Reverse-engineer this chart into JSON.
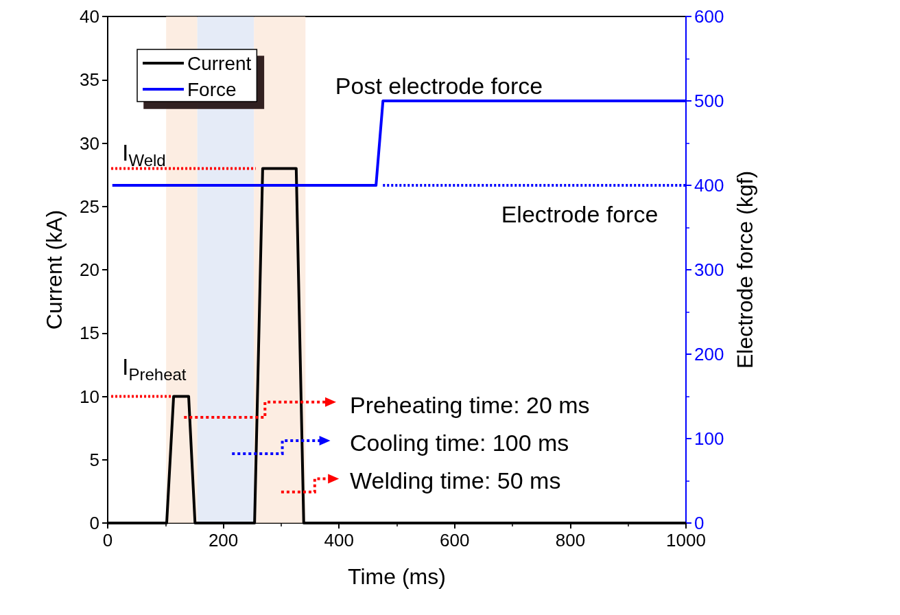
{
  "chart_data": {
    "type": "line",
    "xlabel": "Time (ms)",
    "ylabel": "Current (kA)",
    "y2label": "Electrode force (kgf)",
    "xlim": [
      0,
      1000
    ],
    "xticks": [
      0,
      200,
      400,
      600,
      800,
      1000
    ],
    "ylim": [
      0,
      40
    ],
    "yticks": [
      0,
      5,
      10,
      15,
      20,
      25,
      30,
      35,
      40
    ],
    "y2lim": [
      0,
      600
    ],
    "y2ticks": [
      0,
      100,
      200,
      300,
      400,
      500,
      600
    ],
    "grid": false,
    "legend": "top left",
    "marker": "none",
    "series": [
      {
        "name": "Current",
        "color": "#000000",
        "x": [
          0,
          102,
          114,
          140,
          151,
          254,
          268,
          326,
          339,
          1000
        ],
        "values": [
          0,
          0,
          10,
          10,
          0,
          0,
          28,
          28,
          0,
          0
        ]
      },
      {
        "name": "Force",
        "color": "#0000ff",
        "axis": "y2",
        "x": [
          8,
          464,
          476,
          1000
        ],
        "values": [
          400,
          400,
          500,
          500
        ]
      },
      {
        "color": "#0000ff",
        "axis": "y2",
        "line_style": "dotted",
        "x": [
          476,
          1000
        ],
        "values": [
          400,
          400
        ]
      },
      {
        "color": "#ff0000",
        "line_style": "dotted",
        "x": [
          6,
          256
        ],
        "values": [
          28,
          28
        ]
      },
      {
        "color": "#ff0000",
        "line_style": "dotted",
        "x": [
          6,
          110
        ],
        "values": [
          10,
          10
        ]
      }
    ],
    "bands": [
      {
        "axis": "x",
        "from": 101,
        "to": 155,
        "color": "#fbe5d6"
      },
      {
        "axis": "x",
        "from": 155,
        "to": 253,
        "color": "#dae3f3"
      },
      {
        "axis": "x",
        "from": 253,
        "to": 342,
        "color": "#fbe5d6"
      }
    ],
    "annotations": [
      "I$_{Weld}$",
      "I$_{Preheat}$",
      "Post electrode force",
      "Electrode force",
      "Preheating time: 20 ms",
      "Cooling time: 100 ms",
      "Welding time: 50 ms"
    ]
  }
}
